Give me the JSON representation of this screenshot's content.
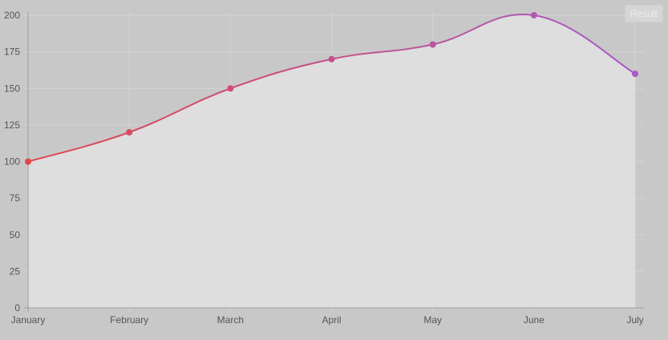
{
  "result_button": {
    "label": "Result"
  },
  "chart_data": {
    "type": "line",
    "categories": [
      "January",
      "February",
      "March",
      "April",
      "May",
      "June",
      "July"
    ],
    "values": [
      100,
      120,
      150,
      170,
      180,
      200,
      160
    ],
    "ylim": [
      0,
      200
    ],
    "yticks": [
      0,
      25,
      50,
      75,
      100,
      125,
      150,
      175,
      200
    ],
    "grid": true,
    "fill_under_line": true,
    "line_gradient": [
      "#e0474c",
      "#a65cc8"
    ],
    "fill_color": "#dedede",
    "grid_color": "#d4d4d4",
    "axis_color": "#9e9e9e",
    "label_color": "#555555"
  }
}
